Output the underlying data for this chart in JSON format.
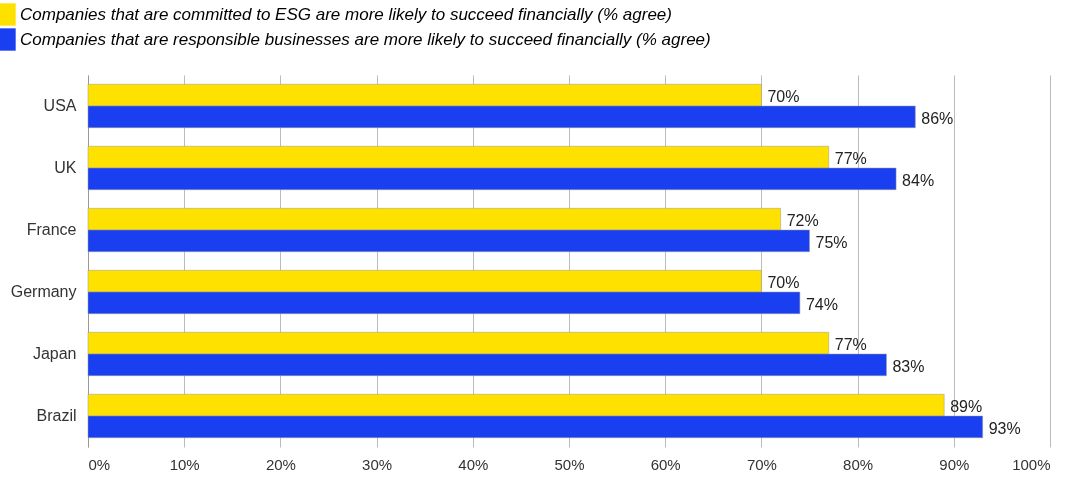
{
  "chart_data": {
    "type": "bar",
    "orientation": "horizontal",
    "categories": [
      "USA",
      "UK",
      "France",
      "Germany",
      "Japan",
      "Brazil"
    ],
    "series": [
      {
        "name": "Companies that are committed to ESG are more likely to succeed financially (% agree)",
        "color": "#ffe100",
        "values": [
          70,
          77,
          72,
          70,
          77,
          89
        ],
        "value_labels": [
          "70%",
          "77%",
          "72%",
          "70%",
          "77%",
          "89%"
        ]
      },
      {
        "name": "Companies that are responsible businesses are more likely to succeed financially (% agree)",
        "color": "#1a3ff0",
        "values": [
          86,
          84,
          75,
          74,
          83,
          93
        ],
        "value_labels": [
          "86%",
          "84%",
          "75%",
          "74%",
          "83%",
          "93%"
        ]
      }
    ],
    "xlim": [
      0,
      100
    ],
    "xticks": [
      {
        "value": 0,
        "label": "0%"
      },
      {
        "value": 10,
        "label": "10%"
      },
      {
        "value": 20,
        "label": "20%"
      },
      {
        "value": 30,
        "label": "30%"
      },
      {
        "value": 40,
        "label": "40%"
      },
      {
        "value": 50,
        "label": "50%"
      },
      {
        "value": 60,
        "label": "60%"
      },
      {
        "value": 70,
        "label": "70%"
      },
      {
        "value": 80,
        "label": "80%"
      },
      {
        "value": 90,
        "label": "90%"
      },
      {
        "value": 100,
        "label": "100%"
      }
    ],
    "grid": "x",
    "legend": "top left"
  }
}
